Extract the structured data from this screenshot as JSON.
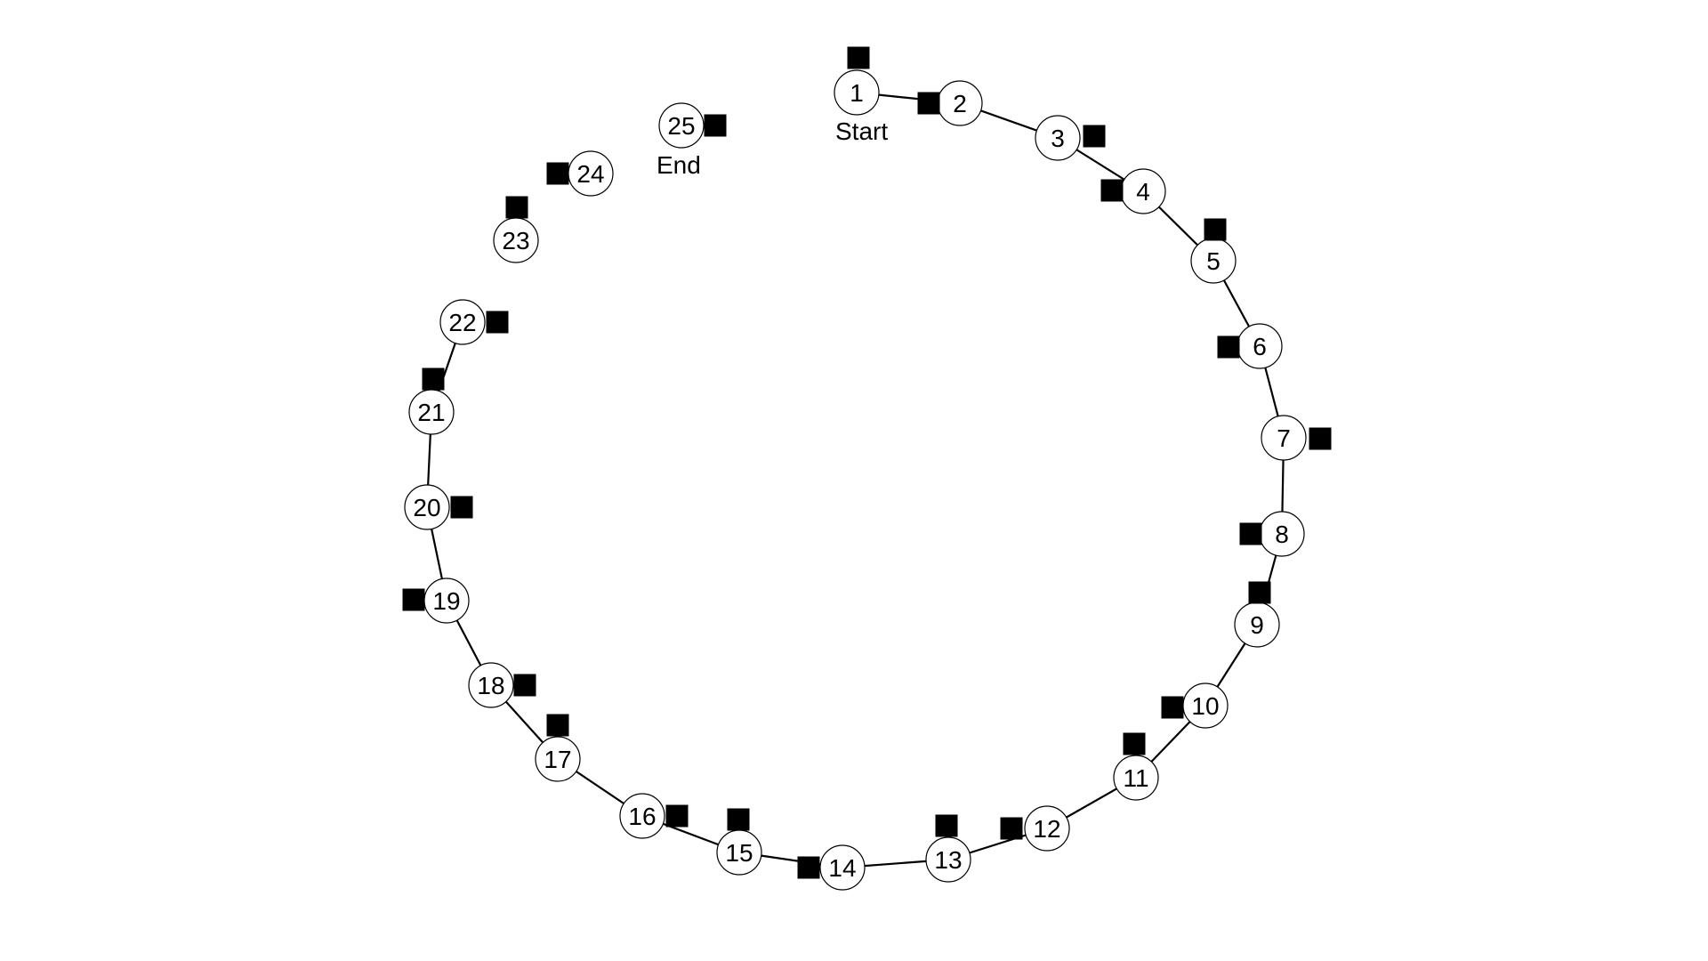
{
  "diagram": {
    "nodes": [
      "1",
      "2",
      "3",
      "4",
      "5",
      "6",
      "7",
      "8",
      "9",
      "10",
      "11",
      "12",
      "13",
      "14",
      "15",
      "16",
      "17",
      "18",
      "19",
      "20",
      "21",
      "22",
      "23",
      "24",
      "25"
    ],
    "start_label": "Start",
    "end_label": "End",
    "path_sequence": [
      "1",
      "2",
      "3",
      "4",
      "5",
      "6",
      "7",
      "8",
      "9",
      "10",
      "11",
      "12",
      "13",
      "14",
      "15",
      "16",
      "17",
      "18",
      "19",
      "20",
      "21",
      "22"
    ],
    "colors": {
      "line": "#000000",
      "node_fill": "#ffffff",
      "marker": "#000000"
    }
  }
}
